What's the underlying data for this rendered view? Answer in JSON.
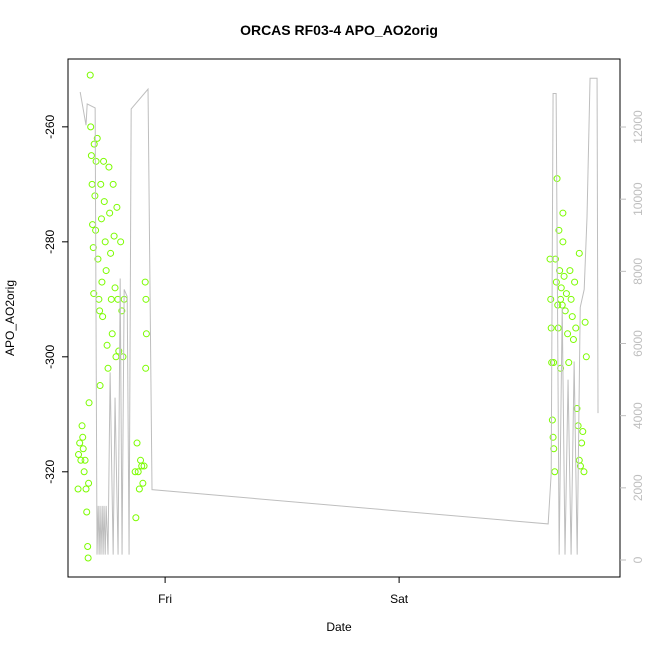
{
  "chart_data": {
    "type": "scatter",
    "title": "ORCAS RF03-4 APO_AO2orig",
    "xlabel": "Date",
    "ylabel": "APO_AO2orig",
    "xlim": [
      -0.415,
      1.944
    ],
    "xticks": [
      {
        "value": 0,
        "label": "Fri"
      },
      {
        "value": 1,
        "label": "Sat"
      }
    ],
    "ylim": [
      -338.3,
      -248.2
    ],
    "yticks": [
      -320,
      -300,
      -280,
      -260
    ],
    "y2lim": [
      -471,
      13885
    ],
    "y2ticks": [
      0,
      2000,
      4000,
      6000,
      8000,
      10000,
      12000
    ],
    "y2color": "#bebebe",
    "series": [
      {
        "type": "scatter",
        "color": "#7cfc00",
        "x": [
          -0.37,
          -0.365,
          -0.36,
          -0.355,
          -0.35,
          -0.346,
          -0.342,
          -0.338,
          -0.335,
          -0.331,
          -0.329,
          -0.327,
          -0.325,
          -0.372,
          -0.352,
          -0.32,
          -0.318,
          -0.315,
          -0.312,
          -0.31,
          -0.307,
          -0.305,
          -0.303,
          -0.3,
          -0.297,
          -0.295,
          -0.29,
          -0.287,
          -0.283,
          -0.28,
          -0.278,
          -0.275,
          -0.272,
          -0.27,
          -0.267,
          -0.263,
          -0.26,
          -0.256,
          -0.252,
          -0.248,
          -0.244,
          -0.24,
          -0.237,
          -0.233,
          -0.23,
          -0.226,
          -0.222,
          -0.218,
          -0.214,
          -0.21,
          -0.206,
          -0.202,
          -0.198,
          -0.19,
          -0.185,
          -0.18,
          -0.175,
          -0.12,
          -0.115,
          -0.11,
          -0.105,
          -0.1,
          -0.095,
          -0.09,
          -0.085,
          -0.082,
          -0.08,
          -0.083,
          -0.125,
          -0.128,
          1.645,
          1.648,
          1.65,
          1.652,
          1.655,
          1.658,
          1.661,
          1.665,
          1.668,
          1.672,
          1.675,
          1.678,
          1.68,
          1.683,
          1.686,
          1.69,
          1.693,
          1.697,
          1.7,
          1.705,
          1.71,
          1.715,
          1.72,
          1.725,
          1.73,
          1.735,
          1.74,
          1.745,
          1.75,
          1.755,
          1.76,
          1.765,
          1.77,
          1.775,
          1.78,
          1.785,
          1.79,
          1.795,
          1.8,
          1.66,
          1.7,
          1.69,
          1.77
        ],
        "values": [
          -317,
          -315,
          -318,
          -312,
          -316,
          -320,
          -318,
          -323,
          -327,
          -333,
          -335,
          -322,
          -308,
          -323,
          -314,
          -251,
          -260,
          -265,
          -270,
          -277,
          -281,
          -289,
          -263,
          -272,
          -278,
          -266,
          -262,
          -283,
          -290,
          -292,
          -305,
          -270,
          -276,
          -287,
          -293,
          -266,
          -273,
          -280,
          -285,
          -298,
          -302,
          -267,
          -275,
          -282,
          -290,
          -296,
          -270,
          -279,
          -288,
          -300,
          -274,
          -290,
          -299,
          -280,
          -292,
          -300,
          -290,
          -315,
          -320,
          -323,
          -318,
          -319,
          -322,
          -319,
          -287,
          -290,
          -296,
          -302,
          -328,
          -320,
          -283,
          -290,
          -295,
          -301,
          -311,
          -314,
          -316,
          -320,
          -283,
          -287,
          -269,
          -291,
          -295,
          -278,
          -285,
          -302,
          -288,
          -291,
          -280,
          -286,
          -292,
          -289,
          -296,
          -301,
          -285,
          -290,
          -293,
          -297,
          -287,
          -295,
          -309,
          -312,
          -318,
          -319,
          -315,
          -313,
          -320,
          -294,
          -300,
          -301,
          -275,
          -290,
          -282
        ]
      },
      {
        "type": "line",
        "axis": "y2",
        "color": "#bebebe",
        "x": [
          -0.363,
          -0.338,
          -0.333,
          -0.299,
          -0.291,
          -0.286,
          -0.282,
          -0.278,
          -0.274,
          -0.269,
          -0.265,
          -0.261,
          -0.256,
          -0.252,
          -0.244,
          -0.235,
          -0.222,
          -0.214,
          -0.201,
          -0.192,
          -0.184,
          -0.175,
          -0.162,
          -0.154,
          -0.145,
          -0.073,
          -0.056,
          1.637,
          1.65,
          1.658,
          1.671,
          1.684,
          1.697,
          1.709,
          1.722,
          1.735,
          1.748,
          1.761,
          1.774,
          1.791,
          1.803,
          1.816,
          1.846,
          1.85
        ],
        "values": [
          12970,
          12050,
          12640,
          12530,
          150,
          1500,
          150,
          1500,
          150,
          1500,
          150,
          1500,
          150,
          1500,
          150,
          5200,
          150,
          4500,
          150,
          7800,
          150,
          7500,
          7300,
          150,
          12500,
          13050,
          1950,
          1000,
          2400,
          12930,
          12930,
          150,
          7000,
          150,
          5000,
          150,
          5500,
          150,
          7000,
          7500,
          9500,
          13350,
          13350,
          4070
        ]
      }
    ]
  }
}
